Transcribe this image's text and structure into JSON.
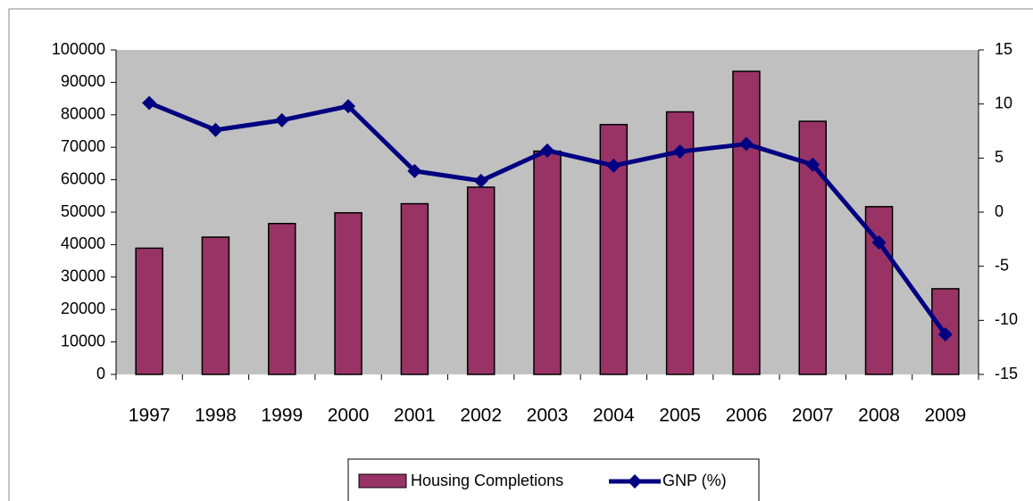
{
  "chart_data": {
    "type": "bar_line",
    "categories": [
      "1997",
      "1998",
      "1999",
      "2000",
      "2001",
      "2002",
      "2003",
      "2004",
      "2005",
      "2006",
      "2007",
      "2008",
      "2009"
    ],
    "series": [
      {
        "name": "Housing Completions",
        "type": "bar",
        "color": "#993366",
        "axis": "y",
        "values": [
          38900,
          42300,
          46500,
          49800,
          52600,
          57700,
          68800,
          77000,
          80900,
          93400,
          78000,
          51700,
          26400
        ]
      },
      {
        "name": "GNP (%)",
        "type": "line",
        "color": "#000080",
        "axis": "y2",
        "values": [
          10.1,
          7.6,
          8.5,
          9.8,
          3.8,
          2.9,
          5.7,
          4.3,
          5.6,
          6.3,
          4.4,
          -2.8,
          -11.3
        ]
      }
    ],
    "ylim": [
      0,
      100000
    ],
    "yticks": [
      0,
      10000,
      20000,
      30000,
      40000,
      50000,
      60000,
      70000,
      80000,
      90000,
      100000
    ],
    "y2lim": [
      -15,
      15
    ],
    "y2ticks": [
      -15,
      -10,
      -5,
      0,
      5,
      10,
      15
    ],
    "plot_background": "#c0c0c0",
    "legend": "bottom"
  }
}
